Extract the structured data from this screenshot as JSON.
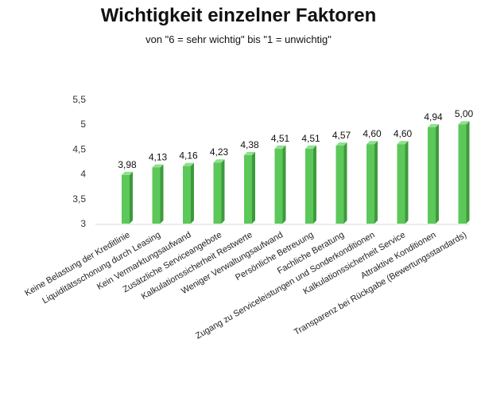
{
  "chart_data": {
    "type": "bar",
    "title": "Wichtigkeit einzelner Faktoren",
    "subtitle": "von \"6 = sehr wichtig\" bis \"1 = unwichtig\"",
    "categories": [
      "Keine Belastung der Kreditlinie",
      "Liquiditätsschonung durch Leasing",
      "Kein Vermarktungsaufwand",
      "Zusätzliche Serviceangebote",
      "Kalkulationssicherheit Restwerte",
      "Weniger Verwaltungsaufwand",
      "Persönliche Betreuung",
      "Fachliche Beratung",
      "Zugang zu Serviceleistungen und Sonderkonditionen",
      "Kalkulationssicherheit Service",
      "Attraktive Konditionen",
      "Transparenz bei Rückgabe (Bewertungsstandards)"
    ],
    "values": [
      3.98,
      4.13,
      4.16,
      4.23,
      4.38,
      4.51,
      4.51,
      4.57,
      4.6,
      4.6,
      4.94,
      5.0
    ],
    "data_labels": [
      "3,98",
      "4,13",
      "4,16",
      "4,23",
      "4,38",
      "4,51",
      "4,51",
      "4,57",
      "4,60",
      "4,60",
      "4,94",
      "5,00"
    ],
    "ylim": [
      3,
      5.5
    ],
    "yticks": [
      3,
      3.5,
      4,
      4.5,
      5,
      5.5
    ],
    "ytick_labels": [
      "3",
      "3,5",
      "4",
      "4,5",
      "5",
      "5,5"
    ],
    "grid": false,
    "bar_color": "#5cc85a",
    "bar_side_color": "#3e9a3c",
    "bar_top_color": "#8fe08d"
  }
}
